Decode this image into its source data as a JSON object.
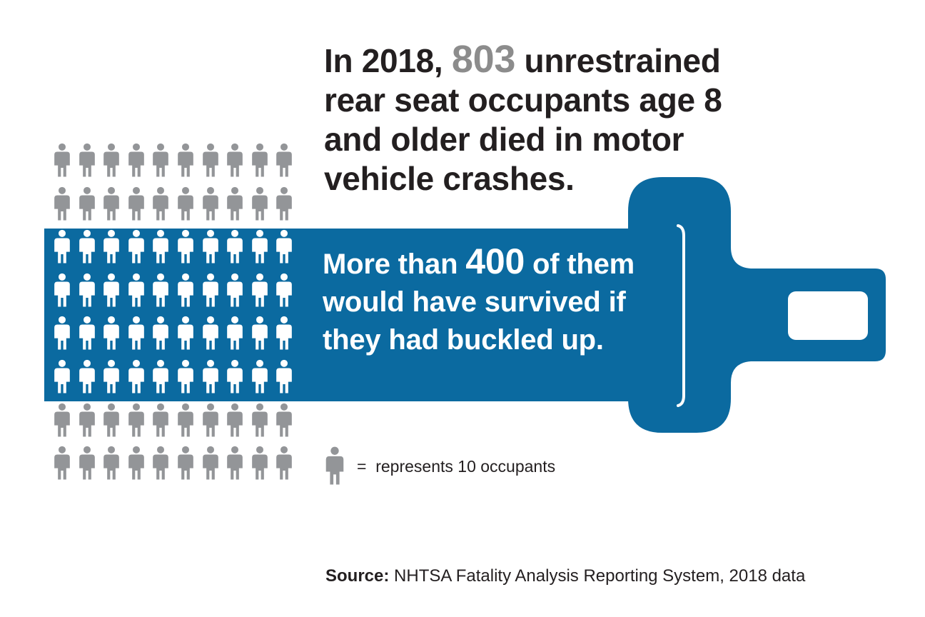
{
  "colors": {
    "belt_blue": "#0b6aa0",
    "person_gray": "#939598",
    "person_white": "#ffffff",
    "text_dark": "#231f20",
    "highlight_gray": "#8c8c8c"
  },
  "headline": {
    "prefix": "In 2018, ",
    "number": "803",
    "suffix": " unrestrained rear seat occupants age 8 and older died in motor vehicle crashes."
  },
  "belt_message": {
    "prefix": "More than ",
    "number": "400",
    "suffix": " of them would have survived if they had buckled up."
  },
  "pictogram": {
    "rows": 8,
    "columns": 10,
    "total_icons": 80,
    "highlighted_rows": [
      3,
      4,
      5,
      6
    ],
    "highlighted_icons": 40,
    "icon": "person-icon"
  },
  "legend": {
    "icon": "person-icon",
    "equals": "=",
    "text": "represents 10 occupants"
  },
  "source": {
    "label": "Source:",
    "text": " NHTSA Fatality Analysis Reporting System, 2018 data"
  }
}
